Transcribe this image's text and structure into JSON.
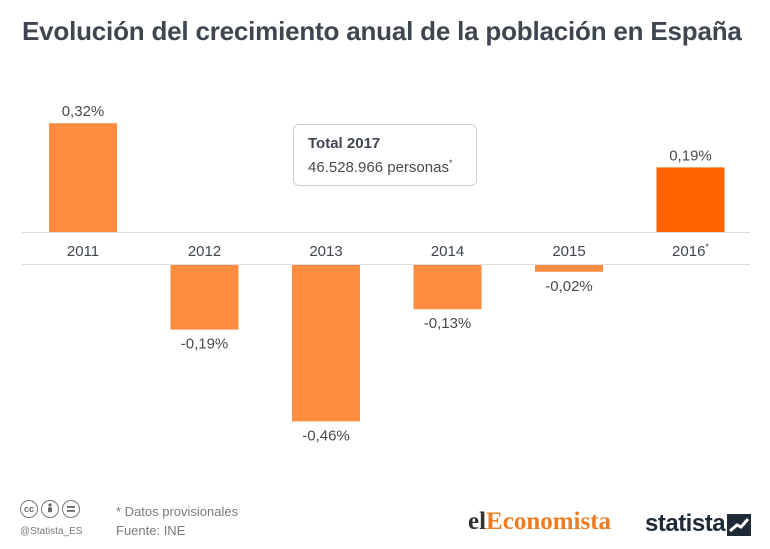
{
  "title": "Evolución del crecimiento anual de la población en España",
  "info_box": {
    "title": "Total 2017",
    "value": "46.528.966 personas",
    "value_mark": "*"
  },
  "footer": {
    "note": "* Datos provisionales",
    "source": "Fuente: INE",
    "handle": "@Statista_ES",
    "cc_icons": [
      "cc-icon",
      "by-icon",
      "nd-icon"
    ]
  },
  "brands": {
    "el_prefix": "el",
    "el_main": "Economista",
    "statista": "statista"
  },
  "colors": {
    "bar": "#fd8c40",
    "bar_highlight": "#ff6400",
    "title": "#3f4650",
    "text": "#4a4a4a"
  },
  "chart_data": {
    "type": "bar",
    "categories": [
      "2011",
      "2012",
      "2013",
      "2014",
      "2015",
      "2016*"
    ],
    "values": [
      0.32,
      -0.19,
      -0.46,
      -0.13,
      -0.02,
      0.19
    ],
    "labels": [
      "0,32%",
      "-0,19%",
      "-0,46%",
      "-0,13%",
      "-0,02%",
      "0,19%"
    ],
    "highlight_index": 5,
    "ylim": [
      -0.5,
      0.35
    ],
    "grid": true
  }
}
